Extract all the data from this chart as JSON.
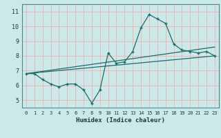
{
  "xlabel": "Humidex (Indice chaleur)",
  "bg_color": "#cce8e8",
  "grid_color": "#e8b8b8",
  "line_color": "#1a6b6b",
  "xlim": [
    -0.5,
    23.5
  ],
  "ylim": [
    4.5,
    11.5
  ],
  "xticks": [
    0,
    1,
    2,
    3,
    4,
    5,
    6,
    7,
    8,
    9,
    10,
    11,
    12,
    13,
    14,
    15,
    16,
    17,
    18,
    19,
    20,
    21,
    22,
    23
  ],
  "yticks": [
    5,
    6,
    7,
    8,
    9,
    10,
    11
  ],
  "curve1_x": [
    0,
    1,
    2,
    3,
    4,
    5,
    6,
    7,
    8,
    9,
    10,
    11,
    12,
    13,
    14,
    15,
    16,
    17,
    18,
    19,
    20,
    21,
    22,
    23
  ],
  "curve1_y": [
    6.8,
    6.8,
    6.4,
    6.1,
    5.9,
    6.1,
    6.1,
    5.7,
    4.8,
    5.7,
    8.2,
    7.5,
    7.6,
    8.3,
    9.9,
    10.8,
    10.5,
    10.2,
    8.8,
    8.4,
    8.3,
    8.2,
    8.3,
    8.0
  ],
  "line2_x": [
    0,
    23
  ],
  "line2_y": [
    6.8,
    8.6
  ],
  "line3_x": [
    0,
    23
  ],
  "line3_y": [
    6.8,
    8.0
  ]
}
